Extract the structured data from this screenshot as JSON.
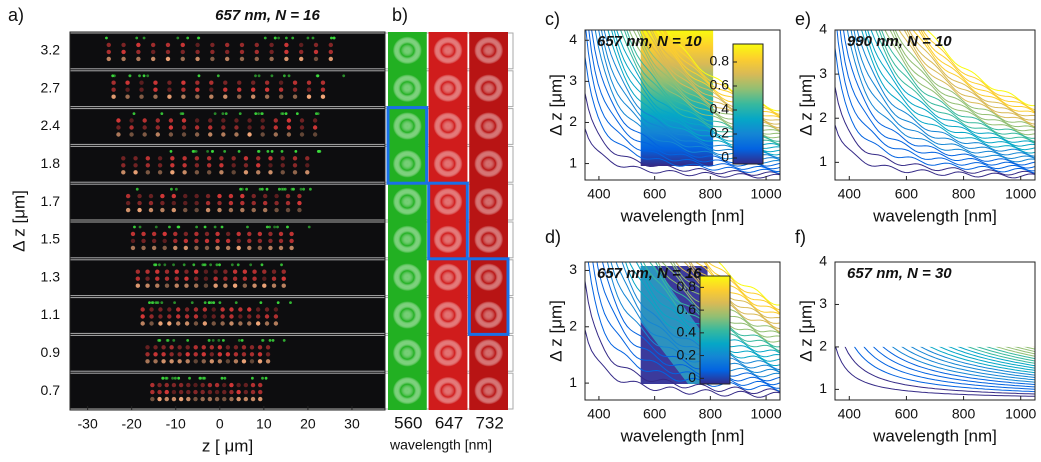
{
  "chart_data": [
    {
      "type": "image",
      "panel": "a)",
      "title": "657 nm, N = 16",
      "xlabel": "z [ μm]",
      "ylabel": "Δ z [μm]",
      "xlim": [
        -34,
        37.5
      ],
      "xticks": [
        -30,
        -20,
        -10,
        0,
        10,
        20,
        30
      ],
      "categories": [
        "3.2",
        "2.7",
        "2.4",
        "1.8",
        "1.7",
        "1.5",
        "1.3",
        "1.1",
        "0.9",
        "0.7"
      ]
    },
    {
      "type": "tiles",
      "panel": "b)",
      "xlabel": "wavelength [nm]",
      "categories": [
        "560",
        "647",
        "732"
      ],
      "colors": [
        "#22b022",
        "#d01c1c",
        "#b81414"
      ]
    },
    {
      "type": "contour",
      "panel": "c)",
      "title": "657 nm, N = 10",
      "xlabel": "wavelength [nm]",
      "ylabel": "Δ z [μm]",
      "xlim": [
        350,
        1050
      ],
      "xticks": [
        400,
        600,
        800,
        1000
      ],
      "ylim": [
        0.6,
        4.25
      ],
      "yticks": [
        1,
        2,
        3,
        4
      ],
      "colorbar": {
        "lim": [
          -0.05,
          0.95
        ],
        "ticks": [
          0,
          0.2,
          0.4,
          0.6,
          0.8
        ]
      }
    },
    {
      "type": "contour",
      "panel": "d)",
      "title": "657 nm, N = 16",
      "xlabel": "wavelength [nm]",
      "ylabel": "Δ z [μm]",
      "xlim": [
        350,
        1050
      ],
      "xticks": [
        400,
        600,
        800,
        1000
      ],
      "ylim": [
        0.7,
        3.15
      ],
      "yticks": [
        1,
        2,
        3
      ],
      "colorbar": {
        "lim": [
          -0.05,
          0.9
        ],
        "ticks": [
          0,
          0.2,
          0.4,
          0.6,
          0.8
        ]
      }
    },
    {
      "type": "contour",
      "panel": "e)",
      "title": "990 nm, N = 10",
      "xlabel": "wavelength [nm]",
      "ylabel": "Δ z [μm]",
      "xlim": [
        350,
        1050
      ],
      "xticks": [
        400,
        600,
        800,
        1000
      ],
      "ylim": [
        0.6,
        4
      ],
      "yticks": [
        1,
        2,
        3,
        4
      ]
    },
    {
      "type": "contour",
      "panel": "f)",
      "title": "657 nm, N = 30",
      "xlabel": "wavelength [nm]",
      "ylabel": "Δ z [μm]",
      "xlim": [
        350,
        1050
      ],
      "xticks": [
        400,
        600,
        800,
        1000
      ],
      "ylim": [
        0.75,
        4
      ],
      "yticks": [
        1,
        2,
        3,
        4
      ]
    }
  ]
}
